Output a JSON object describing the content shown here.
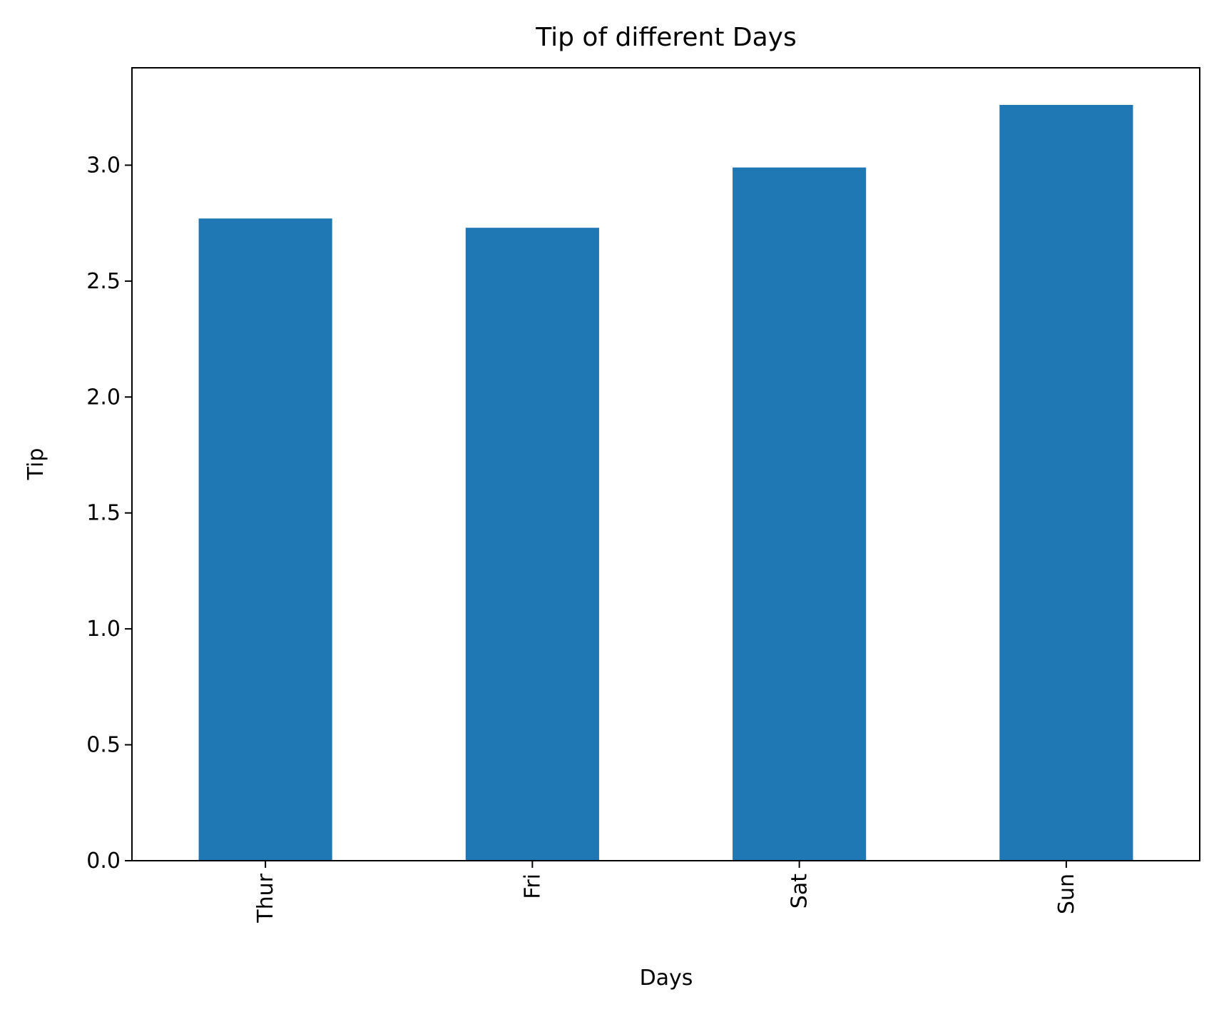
{
  "chart_data": {
    "type": "bar",
    "title": "Tip of different Days",
    "xlabel": "Days",
    "ylabel": "Tip",
    "categories": [
      "Thur",
      "Fri",
      "Sat",
      "Sun"
    ],
    "values": [
      2.77,
      2.73,
      2.99,
      3.26
    ],
    "ylim": [
      0,
      3.42
    ],
    "yticks": [
      0.0,
      0.5,
      1.0,
      1.5,
      2.0,
      2.5,
      3.0
    ],
    "ytick_labels": [
      "0.0",
      "0.5",
      "1.0",
      "1.5",
      "2.0",
      "2.5",
      "3.0"
    ],
    "grid": false,
    "legend": "none",
    "bar_color": "#1f77b4"
  }
}
